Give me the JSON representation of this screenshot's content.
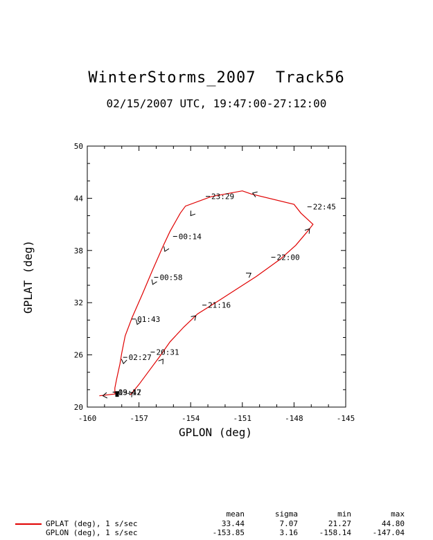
{
  "title": "WinterStorms_2007  Track56",
  "subtitle": "02/15/2007 UTC, 19:47:00-27:12:00",
  "colors": {
    "track": "#e00000",
    "axis": "#000000"
  },
  "chart_data": {
    "type": "line",
    "xlabel": "GPLON (deg)",
    "ylabel": "GPLAT (deg)",
    "xlim": [
      -160,
      -145
    ],
    "ylim": [
      20,
      50
    ],
    "xticks": [
      -160,
      -157,
      -154,
      -151,
      -148,
      -145
    ],
    "yticks": [
      20,
      26,
      32,
      38,
      44,
      50
    ],
    "grid": false,
    "series": [
      {
        "name": "GPLAT (deg), 1 s/sec",
        "points": [
          [
            -157.5,
            21.4
          ],
          [
            -157.0,
            22.6
          ],
          [
            -156.4,
            24.2
          ],
          [
            -155.8,
            25.8
          ],
          [
            -155.2,
            27.5
          ],
          [
            -154.4,
            29.2
          ],
          [
            -153.6,
            30.7
          ],
          [
            -152.4,
            32.2
          ],
          [
            -151.3,
            33.6
          ],
          [
            -150.2,
            35.0
          ],
          [
            -148.8,
            37.0
          ],
          [
            -147.9,
            38.6
          ],
          [
            -147.3,
            40.0
          ],
          [
            -146.9,
            41.0
          ],
          [
            -147.6,
            42.3
          ],
          [
            -148.0,
            43.3
          ],
          [
            -150.5,
            44.5
          ],
          [
            -151.0,
            44.85
          ],
          [
            -152.8,
            44.2
          ],
          [
            -154.3,
            43.1
          ],
          [
            -154.6,
            42.3
          ],
          [
            -155.2,
            40.2
          ],
          [
            -155.6,
            38.5
          ],
          [
            -156.2,
            35.8
          ],
          [
            -156.8,
            33.0
          ],
          [
            -157.4,
            30.3
          ],
          [
            -157.8,
            28.2
          ],
          [
            -157.9,
            27.2
          ],
          [
            -158.0,
            26.2
          ],
          [
            -158.1,
            25.0
          ],
          [
            -158.3,
            23.2
          ],
          [
            -158.4,
            22.2
          ],
          [
            -158.4,
            21.5
          ],
          [
            -159.3,
            21.3
          ]
        ],
        "direction_markers": [
          [
            -157.4,
            21.7
          ],
          [
            -155.6,
            25.5
          ],
          [
            -153.7,
            30.5
          ],
          [
            -150.5,
            35.4
          ],
          [
            -147.1,
            40.5
          ],
          [
            -150.4,
            44.6
          ],
          [
            -154.0,
            42.0
          ],
          [
            -155.5,
            37.9
          ],
          [
            -156.2,
            34.1
          ],
          [
            -157.1,
            29.5
          ],
          [
            -157.9,
            25.0
          ],
          [
            -159.1,
            21.3
          ]
        ]
      }
    ],
    "time_labels": [
      {
        "text": "20:31",
        "lon": -156.0,
        "lat": 26.0
      },
      {
        "text": "21:16",
        "lon": -153.0,
        "lat": 31.4
      },
      {
        "text": "22:00",
        "lon": -149.0,
        "lat": 36.9
      },
      {
        "text": "22:45",
        "lon": -146.9,
        "lat": 42.7
      },
      {
        "text": "23:29",
        "lon": -152.8,
        "lat": 43.9
      },
      {
        "text": "00:14",
        "lon": -154.7,
        "lat": 39.3
      },
      {
        "text": "00:58",
        "lon": -155.8,
        "lat": 34.6
      },
      {
        "text": "01:43",
        "lon": -157.1,
        "lat": 29.8
      },
      {
        "text": "02:27",
        "lon": -157.6,
        "lat": 25.4
      },
      {
        "text": "19:47",
        "lon": -158.2,
        "lat": 21.4
      },
      {
        "text": "03:12",
        "lon": -158.2,
        "lat": 21.4
      }
    ]
  },
  "stats": {
    "headers": [
      "mean",
      "sigma",
      "min",
      "max"
    ],
    "rows": [
      {
        "label": "GPLAT (deg), 1 s/sec",
        "mean": "33.44",
        "sigma": "7.07",
        "min": "21.27",
        "max": "44.80",
        "color": "#e00000"
      },
      {
        "label": "GPLON (deg), 1 s/sec",
        "mean": "-153.85",
        "sigma": "3.16",
        "min": "-158.14",
        "max": "-147.04",
        "color": ""
      }
    ]
  }
}
